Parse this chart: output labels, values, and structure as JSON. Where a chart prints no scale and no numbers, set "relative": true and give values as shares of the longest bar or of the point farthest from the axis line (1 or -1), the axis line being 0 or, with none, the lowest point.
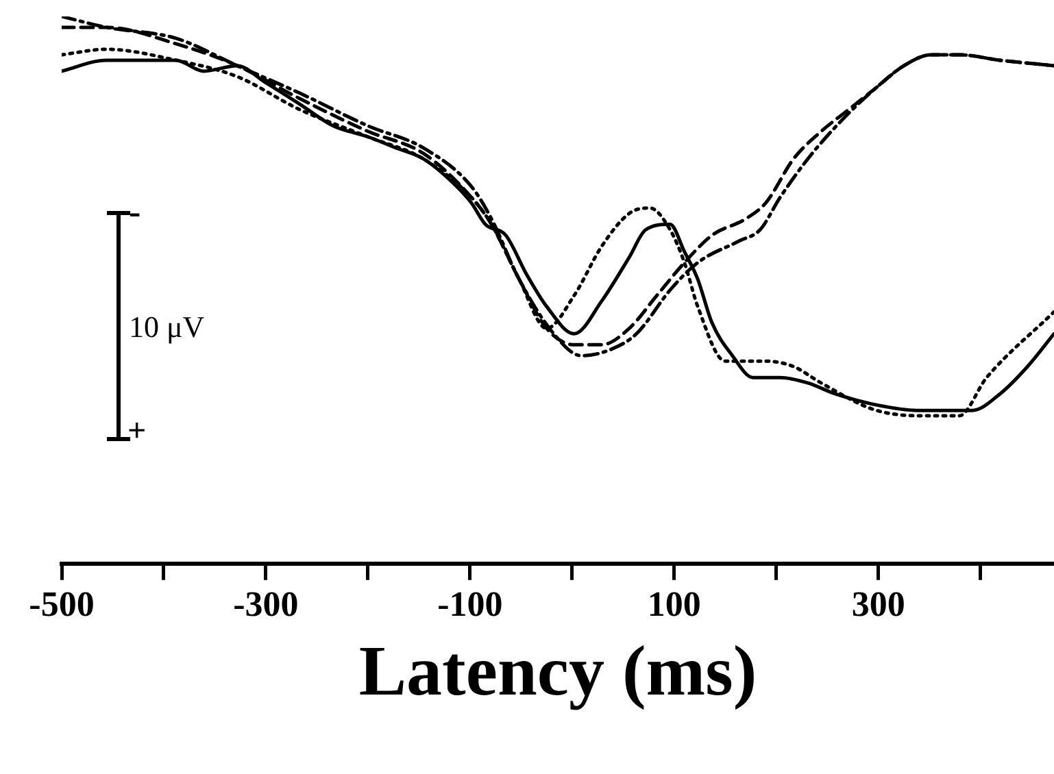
{
  "chart_data": {
    "type": "line",
    "relative": true,
    "xlabel": "Latency (ms)",
    "xlim": [
      -500,
      472
    ],
    "xticks": [
      -500,
      {
        "value": -400,
        "label": null
      },
      -300,
      {
        "value": -200,
        "label": null
      },
      -100,
      {
        "value": 0,
        "label": null
      },
      100,
      {
        "value": 200,
        "label": null
      },
      300,
      {
        "value": 400,
        "label": null
      }
    ],
    "grid": false,
    "legend": false,
    "marker": "none",
    "annotations": [
      "10 μV",
      "-",
      "+"
    ],
    "series": [
      {
        "color": "#000000",
        "line_style": "solid",
        "x": [
          -500,
          -456,
          -388,
          -361,
          -328,
          -301,
          -267,
          -234,
          -200,
          -173,
          -146,
          -119,
          -99,
          -85,
          -65,
          -45,
          -25,
          2,
          29,
          56,
          72,
          96,
          110,
          123,
          137,
          157,
          177,
          204,
          231,
          258,
          298,
          338,
          372,
          392,
          419,
          446,
          472
        ],
        "values": [
          0.9,
          0.92,
          0.92,
          0.9,
          0.91,
          0.88,
          0.84,
          0.8,
          0.78,
          0.76,
          0.74,
          0.7,
          0.66,
          0.62,
          0.6,
          0.53,
          0.47,
          0.42,
          0.48,
          0.56,
          0.61,
          0.62,
          0.57,
          0.52,
          0.44,
          0.38,
          0.34,
          0.34,
          0.33,
          0.31,
          0.29,
          0.28,
          0.28,
          0.28,
          0.31,
          0.36,
          0.42
        ]
      },
      {
        "color": "#000000",
        "line_style": "dotted",
        "x": [
          -500,
          -456,
          -388,
          -328,
          -267,
          -200,
          -146,
          -99,
          -79,
          -52,
          -25,
          2,
          29,
          56,
          76,
          96,
          110,
          123,
          150,
          190,
          217,
          244,
          298,
          352,
          379,
          406,
          472
        ],
        "values": [
          0.93,
          0.94,
          0.92,
          0.89,
          0.83,
          0.78,
          0.74,
          0.67,
          0.62,
          0.52,
          0.43,
          0.49,
          0.58,
          0.64,
          0.65,
          0.61,
          0.55,
          0.47,
          0.37,
          0.37,
          0.36,
          0.33,
          0.28,
          0.27,
          0.27,
          0.34,
          0.46
        ]
      },
      {
        "color": "#000000",
        "line_style": "dashed",
        "x": [
          -500,
          -456,
          -388,
          -328,
          -267,
          -200,
          -146,
          -99,
          -79,
          -52,
          -25,
          2,
          29,
          56,
          83,
          110,
          137,
          170,
          190,
          217,
          244,
          271,
          298,
          325,
          352,
          379,
          419,
          472
        ],
        "values": [
          0.98,
          0.98,
          0.95,
          0.91,
          0.85,
          0.79,
          0.75,
          0.67,
          0.62,
          0.52,
          0.43,
          0.4,
          0.4,
          0.43,
          0.49,
          0.55,
          0.6,
          0.63,
          0.66,
          0.74,
          0.79,
          0.83,
          0.87,
          0.91,
          0.93,
          0.93,
          0.92,
          0.91
        ]
      },
      {
        "color": "#000000",
        "line_style": "dashdot",
        "x": [
          -500,
          -456,
          -388,
          -328,
          -267,
          -200,
          -146,
          -99,
          -79,
          -52,
          -18,
          9,
          36,
          63,
          96,
          123,
          164,
          184,
          204,
          231,
          264,
          298,
          325,
          352,
          379,
          419,
          472
        ],
        "values": [
          1.0,
          0.98,
          0.96,
          0.91,
          0.86,
          0.8,
          0.76,
          0.69,
          0.63,
          0.52,
          0.42,
          0.38,
          0.39,
          0.42,
          0.5,
          0.55,
          0.59,
          0.61,
          0.67,
          0.74,
          0.81,
          0.87,
          0.91,
          0.93,
          0.93,
          0.92,
          0.91
        ]
      }
    ]
  }
}
